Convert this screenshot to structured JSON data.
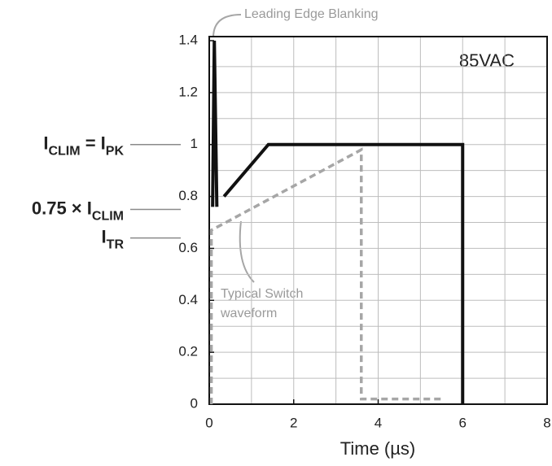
{
  "chart_data": {
    "type": "line",
    "xlabel": "Time (µs)",
    "xlim": [
      0,
      8
    ],
    "xticks": [
      0,
      2,
      4,
      6,
      8
    ],
    "ylim": [
      0,
      1.4
    ],
    "yticks": [
      0,
      0.2,
      0.4,
      0.6,
      0.8,
      1,
      1.2,
      1.4
    ],
    "xgrid": [
      1,
      2,
      3,
      4,
      5,
      6,
      7
    ],
    "ygrid": [
      0.1,
      0.2,
      0.3,
      0.4,
      0.5,
      0.6,
      0.7,
      0.8,
      0.9,
      1,
      1.1,
      1.2,
      1.3
    ],
    "grid": true,
    "series": [
      {
        "name": "85VAC",
        "color": "#111111",
        "dashed": false,
        "x": [
          0.08,
          0.12,
          0.18,
          null,
          0.35,
          1.4,
          6,
          6
        ],
        "values": [
          0.76,
          1.4,
          0.76,
          null,
          0.8,
          1.0,
          1.0,
          0
        ]
      },
      {
        "name": "Typical Switch waveform",
        "color": "#a6a6a6",
        "dashed": true,
        "x": [
          0.05,
          0.05,
          3.6,
          3.6,
          5.5
        ],
        "values": [
          0,
          0.67,
          0.98,
          0.02,
          0.02
        ]
      }
    ],
    "annotations": {
      "blanking": "Leading Edge Blanking",
      "condition": "85VAC",
      "switch_lines": [
        "Typical Switch",
        "waveform"
      ]
    },
    "reference_labels": [
      {
        "value": 1,
        "parts": [
          {
            "text": "I",
            "sub": false
          },
          {
            "text": "CLIM",
            "sub": true
          },
          {
            "text": " = I",
            "sub": false
          },
          {
            "text": "PK",
            "sub": true
          }
        ]
      },
      {
        "value": 0.75,
        "parts": [
          {
            "text": "0.75 × I",
            "sub": false
          },
          {
            "text": "CLIM",
            "sub": true
          }
        ]
      },
      {
        "value": 0.64,
        "parts": [
          {
            "text": "I",
            "sub": false
          },
          {
            "text": "TR",
            "sub": true
          }
        ]
      }
    ]
  }
}
